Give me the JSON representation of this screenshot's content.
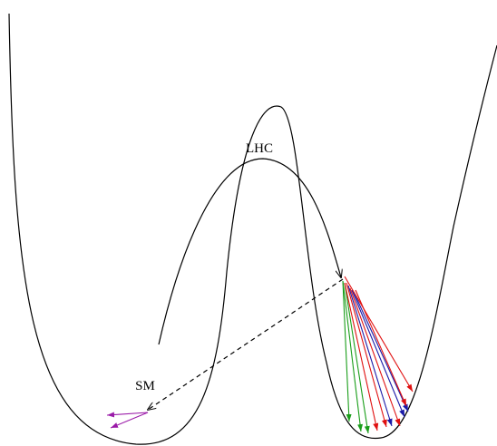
{
  "labels": {
    "lhc": "LHC",
    "sm": "SM"
  }
}
